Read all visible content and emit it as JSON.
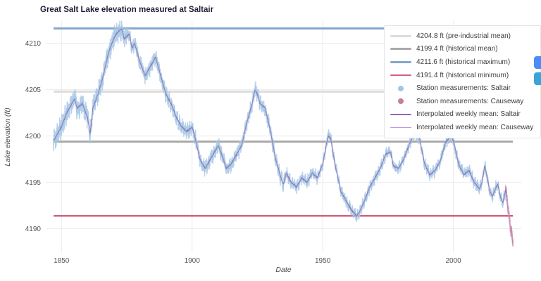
{
  "chart_data": {
    "type": "line",
    "title": "Great Salt Lake elevation measured at Saltair",
    "xlabel": "Date",
    "ylabel": "Lake elevation (ft)",
    "xlim": [
      1844,
      2026
    ],
    "ylim": [
      4187.4,
      4212.4
    ],
    "data_x_range": [
      1847,
      2022.8
    ],
    "x_ticks": [
      1850,
      1900,
      1950,
      2000
    ],
    "y_ticks": [
      4190,
      4195,
      4200,
      4205,
      4210
    ],
    "grid": true,
    "legend_position": "top-right",
    "reference_lines": [
      {
        "label": "4204.8 ft (pre-industrial mean)",
        "value": 4204.8,
        "color": "#dcdcdc",
        "width": 3
      },
      {
        "label": "4199.4 ft (historical mean)",
        "value": 4199.4,
        "color": "#a9a9a9",
        "width": 3
      },
      {
        "label": "4211.6 ft (historical maximum)",
        "value": 4211.6,
        "color": "#84a7cb",
        "width": 3
      },
      {
        "label": "4191.4 ft (historical minimum)",
        "value": 4191.4,
        "color": "#d4617e",
        "width": 2.5
      }
    ],
    "series": [
      {
        "name": "Station measurements: Saltair",
        "type": "scatter",
        "color": "#a3c6e3",
        "x": [
          1847,
          1850,
          1852,
          1854,
          1855,
          1856,
          1858,
          1860,
          1861,
          1862,
          1864,
          1866,
          1868,
          1870,
          1871,
          1873,
          1874,
          1876,
          1877,
          1878,
          1880,
          1882,
          1884,
          1886,
          1888,
          1890,
          1892,
          1894,
          1896,
          1898,
          1900,
          1901,
          1903,
          1905,
          1907,
          1909,
          1910,
          1912,
          1913,
          1915,
          1917,
          1919,
          1921,
          1923,
          1924,
          1925,
          1926,
          1928,
          1930,
          1932,
          1934,
          1935,
          1936,
          1938,
          1940,
          1942,
          1944,
          1946,
          1948,
          1950,
          1952,
          1953,
          1955,
          1957,
          1959,
          1961,
          1963,
          1964,
          1966,
          1968,
          1970,
          1972,
          1974,
          1976,
          1977,
          1979,
          1981,
          1983,
          1985,
          1987,
          1989,
          1991,
          1993,
          1995,
          1997,
          1999,
          2000,
          2002,
          2004,
          2006,
          2008,
          2010,
          2011,
          2012,
          2013,
          2014,
          2015,
          2016,
          2017,
          2018,
          2019,
          2020,
          2020.6
        ],
        "y": [
          4199.5,
          4201.0,
          4202.5,
          4203.5,
          4204.0,
          4203.0,
          4203.5,
          4202.0,
          4200.2,
          4203.0,
          4204.5,
          4206.5,
          4209.0,
          4210.5,
          4211.0,
          4211.6,
          4210.5,
          4211.0,
          4209.5,
          4210.0,
          4208.0,
          4206.5,
          4207.5,
          4208.5,
          4206.5,
          4204.5,
          4203.5,
          4202.0,
          4201.0,
          4200.5,
          4201.0,
          4200.0,
          4197.5,
          4196.5,
          4197.5,
          4198.5,
          4199.0,
          4197.5,
          4196.5,
          4197.0,
          4198.0,
          4199.0,
          4201.5,
          4203.5,
          4205.0,
          4204.5,
          4203.5,
          4203.0,
          4200.5,
          4197.5,
          4195.5,
          4194.8,
          4196.0,
          4195.0,
          4194.5,
          4195.5,
          4195.0,
          4196.0,
          4195.5,
          4197.0,
          4200.0,
          4199.8,
          4196.5,
          4194.0,
          4193.0,
          4192.0,
          4191.4,
          4191.8,
          4193.0,
          4194.5,
          4195.5,
          4196.5,
          4198.0,
          4198.3,
          4196.8,
          4196.5,
          4197.5,
          4199.0,
          4200.3,
          4199.8,
          4197.0,
          4195.8,
          4196.3,
          4197.3,
          4199.3,
          4200.0,
          4199.5,
          4197.0,
          4195.8,
          4196.3,
          4195.0,
          4194.3,
          4195.0,
          4196.8,
          4195.5,
          4194.0,
          4193.5,
          4194.3,
          4194.8,
          4193.5,
          4192.8,
          4194.2,
          4193.0
        ],
        "step": 0.0833
      },
      {
        "name": "Station measurements: Causeway",
        "type": "scatter",
        "color": "#c77d9e",
        "x": [
          2020.0,
          2020.4,
          2020.8,
          2021.2,
          2021.6,
          2022.0,
          2022.4,
          2022.8
        ],
        "y": [
          4194.6,
          4193.6,
          4192.6,
          4191.6,
          4190.8,
          4189.9,
          4189.2,
          4188.8
        ],
        "step": 0.04
      },
      {
        "name": "Interpolated weekly mean: Saltair",
        "type": "line",
        "color": "#8e6bb5",
        "source": 0
      },
      {
        "name": "Interpolated weekly mean: Causeway",
        "type": "line",
        "color": "#c49ad6",
        "source": 1
      }
    ]
  },
  "side_buttons": [
    {
      "name": "panel-button-blue",
      "color": "#4b8cf5"
    },
    {
      "name": "panel-button-teal",
      "color": "#3aa5d8"
    }
  ]
}
